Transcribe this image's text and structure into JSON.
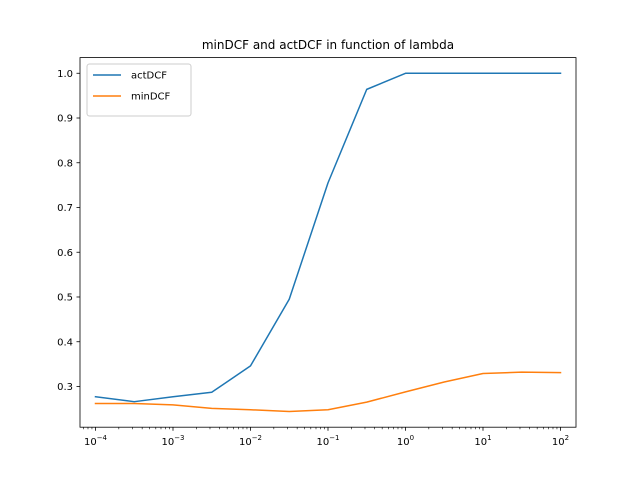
{
  "chart_data": {
    "type": "line",
    "title": "minDCF and actDCF in function of lambda",
    "xlabel": "",
    "ylabel": "",
    "x_scale": "log",
    "x": [
      0.0001,
      0.000316,
      0.001,
      0.00316,
      0.01,
      0.0316,
      0.1,
      0.316,
      1,
      3.16,
      10,
      31.6,
      100
    ],
    "xlim": [
      6.31e-05,
      158.5
    ],
    "ylim": [
      0.209,
      1.035
    ],
    "x_ticks": [
      {
        "value": 0.0001,
        "base": "10",
        "exp": "−4"
      },
      {
        "value": 0.001,
        "base": "10",
        "exp": "−3"
      },
      {
        "value": 0.01,
        "base": "10",
        "exp": "−2"
      },
      {
        "value": 0.1,
        "base": "10",
        "exp": "−1"
      },
      {
        "value": 1,
        "base": "10",
        "exp": "0"
      },
      {
        "value": 10,
        "base": "10",
        "exp": "1"
      },
      {
        "value": 100,
        "base": "10",
        "exp": "2"
      }
    ],
    "y_ticks": [
      0.3,
      0.4,
      0.5,
      0.6,
      0.7,
      0.8,
      0.9,
      1.0
    ],
    "y_tick_labels": [
      "0.3",
      "0.4",
      "0.5",
      "0.6",
      "0.7",
      "0.8",
      "0.9",
      "1.0"
    ],
    "grid": false,
    "legend_position": "top-left",
    "series": [
      {
        "name": "actDCF",
        "color": "#1f77b4",
        "values": [
          0.277,
          0.266,
          0.277,
          0.287,
          0.346,
          0.495,
          0.755,
          0.964,
          1.0,
          1.0,
          1.0,
          1.0,
          1.0
        ]
      },
      {
        "name": "minDCF",
        "color": "#ff7f0e",
        "values": [
          0.262,
          0.262,
          0.259,
          0.251,
          0.248,
          0.244,
          0.248,
          0.265,
          0.288,
          0.31,
          0.329,
          0.332,
          0.331
        ]
      }
    ]
  }
}
